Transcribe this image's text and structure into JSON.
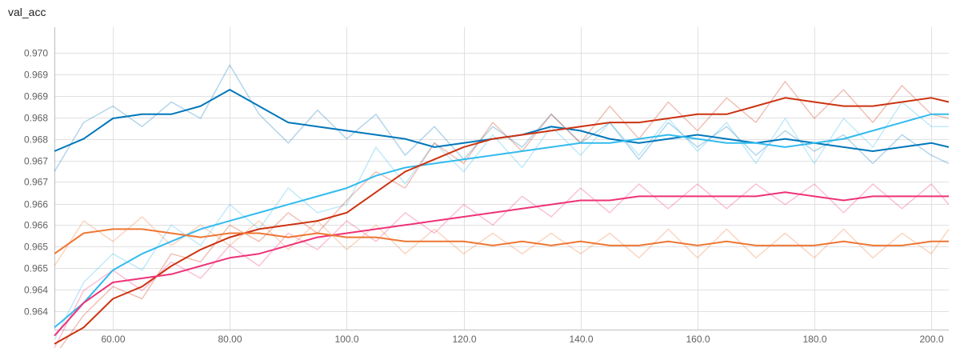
{
  "chart_data": {
    "type": "line",
    "title": "val_acc",
    "xlabel": "",
    "ylabel": "",
    "xlim": [
      50,
      203
    ],
    "ylim": [
      0.96335,
      0.97045
    ],
    "x_ticks": [
      60,
      80,
      100,
      120,
      140,
      160,
      180,
      200
    ],
    "x_tick_labels": [
      "60.00",
      "80.00",
      "100.0",
      "120.0",
      "140.0",
      "160.0",
      "180.0",
      "200.0"
    ],
    "y_ticks": [
      0.9638,
      0.96432,
      0.96485,
      0.96537,
      0.9659,
      0.96642,
      0.96695,
      0.96747,
      0.968,
      0.96852,
      0.96905,
      0.96957
    ],
    "y_tick_labels": [
      "0.964",
      "0.964",
      "0.965",
      "0.965",
      "0.966",
      "0.966",
      "0.967",
      "0.967",
      "0.968",
      "0.968",
      "0.969",
      "0.969"
    ],
    "y_top_tick": 0.9701,
    "y_top_tick_label": "0.970",
    "grid": true,
    "legend": "none",
    "smoothed_opacity": 1.0,
    "raw_opacity": 0.3,
    "series": [
      {
        "color": "#0077bb",
        "x": [
          50,
          55,
          60,
          65,
          70,
          75,
          80,
          85,
          90,
          95,
          100,
          105,
          110,
          115,
          120,
          125,
          130,
          135,
          140,
          145,
          150,
          155,
          160,
          165,
          170,
          175,
          180,
          185,
          190,
          195,
          200,
          203
        ],
        "y": [
          0.9677,
          0.968,
          0.9685,
          0.9686,
          0.9686,
          0.9688,
          0.9692,
          0.9688,
          0.9684,
          0.9683,
          0.9682,
          0.9681,
          0.968,
          0.9678,
          0.9679,
          0.968,
          0.9681,
          0.9683,
          0.9682,
          0.968,
          0.9679,
          0.968,
          0.9681,
          0.968,
          0.9679,
          0.968,
          0.9679,
          0.9678,
          0.9677,
          0.9678,
          0.9679,
          0.9678
        ],
        "raw_y": [
          0.9672,
          0.9684,
          0.9688,
          0.9683,
          0.9689,
          0.9685,
          0.9698,
          0.9686,
          0.9679,
          0.9687,
          0.968,
          0.9686,
          0.9676,
          0.9683,
          0.9675,
          0.9683,
          0.9678,
          0.9686,
          0.9679,
          0.9684,
          0.9675,
          0.9684,
          0.9678,
          0.9683,
          0.9676,
          0.9682,
          0.9677,
          0.9681,
          0.9674,
          0.9681,
          0.9676,
          0.9674
        ]
      },
      {
        "color": "#33bbee",
        "x": [
          50,
          55,
          60,
          65,
          70,
          75,
          80,
          85,
          90,
          95,
          100,
          105,
          110,
          115,
          120,
          125,
          130,
          135,
          140,
          145,
          150,
          155,
          160,
          165,
          170,
          175,
          180,
          185,
          190,
          195,
          200,
          203
        ],
        "y": [
          0.9634,
          0.964,
          0.9648,
          0.9652,
          0.9655,
          0.9658,
          0.966,
          0.9662,
          0.9664,
          0.9666,
          0.9668,
          0.9671,
          0.9673,
          0.9674,
          0.9675,
          0.9676,
          0.9677,
          0.9678,
          0.9679,
          0.9679,
          0.968,
          0.9681,
          0.968,
          0.9679,
          0.9679,
          0.9678,
          0.9679,
          0.968,
          0.9682,
          0.9684,
          0.9686,
          0.9686
        ],
        "raw_y": [
          0.9631,
          0.9645,
          0.9652,
          0.9648,
          0.9659,
          0.9654,
          0.9664,
          0.9658,
          0.9668,
          0.9662,
          0.9664,
          0.9678,
          0.9669,
          0.9679,
          0.9672,
          0.9681,
          0.9673,
          0.9683,
          0.9676,
          0.9684,
          0.9676,
          0.9685,
          0.9677,
          0.9684,
          0.9674,
          0.9685,
          0.9674,
          0.9685,
          0.9678,
          0.9689,
          0.9683,
          0.9683
        ]
      },
      {
        "color": "#cc3311",
        "x": [
          50,
          55,
          60,
          65,
          70,
          75,
          80,
          85,
          90,
          95,
          100,
          105,
          110,
          115,
          120,
          125,
          130,
          135,
          140,
          145,
          150,
          155,
          160,
          165,
          170,
          175,
          180,
          185,
          190,
          195,
          200,
          203
        ],
        "y": [
          0.963,
          0.9634,
          0.9641,
          0.9644,
          0.9649,
          0.9653,
          0.9656,
          0.9658,
          0.9659,
          0.966,
          0.9662,
          0.9667,
          0.9672,
          0.9675,
          0.9678,
          0.968,
          0.9681,
          0.9682,
          0.9683,
          0.9684,
          0.9684,
          0.9685,
          0.9686,
          0.9686,
          0.9688,
          0.969,
          0.9689,
          0.9688,
          0.9688,
          0.9689,
          0.969,
          0.9689
        ],
        "raw_y": [
          0.9627,
          0.9637,
          0.9644,
          0.9641,
          0.9652,
          0.965,
          0.9659,
          0.9655,
          0.9662,
          0.9657,
          0.9665,
          0.9672,
          0.9668,
          0.9679,
          0.9674,
          0.9684,
          0.9677,
          0.9686,
          0.9679,
          0.9688,
          0.968,
          0.9689,
          0.9682,
          0.969,
          0.9684,
          0.9694,
          0.9685,
          0.9692,
          0.9684,
          0.9693,
          0.9686,
          0.9685
        ]
      },
      {
        "color": "#ee3377",
        "x": [
          50,
          55,
          60,
          65,
          70,
          75,
          80,
          85,
          90,
          95,
          100,
          105,
          110,
          115,
          120,
          125,
          130,
          135,
          140,
          145,
          150,
          155,
          160,
          165,
          170,
          175,
          180,
          185,
          190,
          195,
          200,
          203
        ],
        "y": [
          0.9632,
          0.964,
          0.9645,
          0.9646,
          0.9647,
          0.9649,
          0.9651,
          0.9652,
          0.9654,
          0.9656,
          0.9657,
          0.9658,
          0.9659,
          0.966,
          0.9661,
          0.9662,
          0.9663,
          0.9664,
          0.9665,
          0.9665,
          0.9666,
          0.9666,
          0.9666,
          0.9666,
          0.9666,
          0.9667,
          0.9666,
          0.9665,
          0.9666,
          0.9666,
          0.9666,
          0.9666
        ],
        "raw_y": [
          0.9629,
          0.9643,
          0.9648,
          0.9643,
          0.965,
          0.9646,
          0.9654,
          0.9649,
          0.9657,
          0.9653,
          0.966,
          0.9655,
          0.9662,
          0.9657,
          0.9664,
          0.9659,
          0.9666,
          0.9661,
          0.9668,
          0.9662,
          0.9669,
          0.9663,
          0.9669,
          0.9663,
          0.9669,
          0.9664,
          0.9669,
          0.9662,
          0.9669,
          0.9663,
          0.9669,
          0.9664
        ]
      },
      {
        "color": "#ee7733",
        "x": [
          50,
          55,
          60,
          65,
          70,
          75,
          80,
          85,
          90,
          95,
          100,
          105,
          110,
          115,
          120,
          125,
          130,
          135,
          140,
          145,
          150,
          155,
          160,
          165,
          170,
          175,
          180,
          185,
          190,
          195,
          200,
          203
        ],
        "y": [
          0.9652,
          0.9657,
          0.9658,
          0.9658,
          0.9657,
          0.9656,
          0.9657,
          0.9657,
          0.9656,
          0.9657,
          0.9656,
          0.9656,
          0.9655,
          0.9655,
          0.9655,
          0.9654,
          0.9655,
          0.9654,
          0.9655,
          0.9654,
          0.9654,
          0.9655,
          0.9654,
          0.9655,
          0.9654,
          0.9654,
          0.9654,
          0.9655,
          0.9654,
          0.9654,
          0.9655,
          0.9655
        ],
        "raw_y": [
          0.9649,
          0.966,
          0.9655,
          0.9661,
          0.9654,
          0.9659,
          0.9654,
          0.966,
          0.9653,
          0.966,
          0.9653,
          0.9659,
          0.9652,
          0.9658,
          0.9652,
          0.9657,
          0.9652,
          0.9657,
          0.9652,
          0.9657,
          0.9651,
          0.9658,
          0.9651,
          0.9658,
          0.9651,
          0.9657,
          0.9651,
          0.9658,
          0.9651,
          0.9657,
          0.9652,
          0.9658
        ]
      }
    ]
  }
}
